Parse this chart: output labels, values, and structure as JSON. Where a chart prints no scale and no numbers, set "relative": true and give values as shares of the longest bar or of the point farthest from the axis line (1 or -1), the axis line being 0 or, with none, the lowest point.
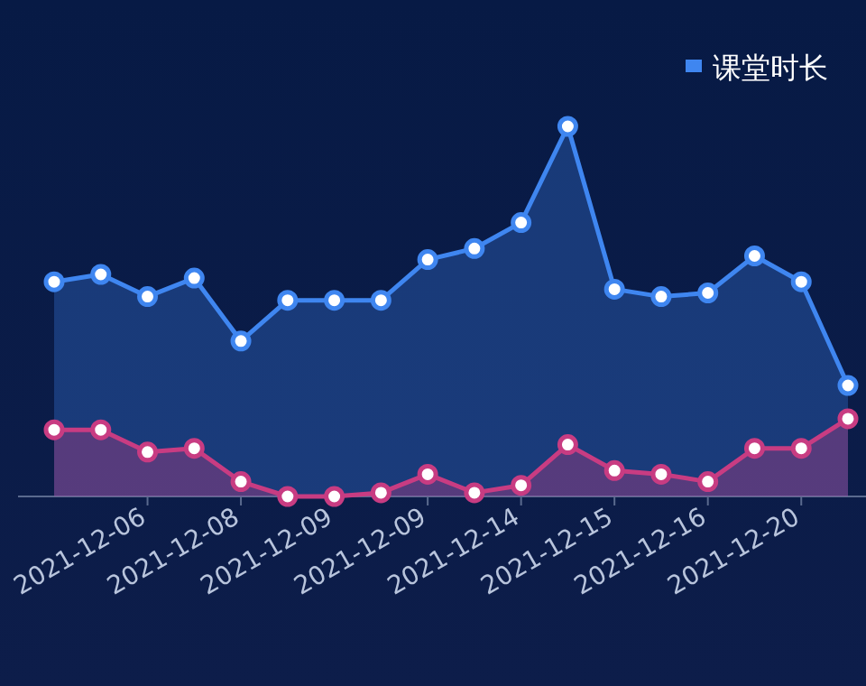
{
  "chart_data": {
    "type": "area",
    "relative": true,
    "marker": "circle",
    "line_style": "solid",
    "legend": "top right",
    "categories": [
      null,
      null,
      "2021-12-06",
      null,
      "2021-12-08",
      null,
      "2021-12-09",
      null,
      "2021-12-09",
      null,
      "2021-12-14",
      null,
      "2021-12-15",
      null,
      "2021-12-16",
      null,
      "2021-12-20",
      null
    ],
    "series": [
      {
        "name": "课堂时长",
        "color": "#3f86f0",
        "values": [
          0.58,
          0.6,
          0.54,
          0.59,
          0.42,
          0.53,
          0.53,
          0.53,
          0.64,
          0.67,
          0.74,
          1,
          0.56,
          0.54,
          0.55,
          0.65,
          0.58,
          0.3
        ]
      },
      {
        "color": "#c83c82",
        "values": [
          0.18,
          0.18,
          0.12,
          0.13,
          0.04,
          0.0,
          0.0,
          0.01,
          0.06,
          0.01,
          0.03,
          0.14,
          0.07,
          0.06,
          0.04,
          0.13,
          0.13,
          0.21
        ]
      }
    ]
  }
}
